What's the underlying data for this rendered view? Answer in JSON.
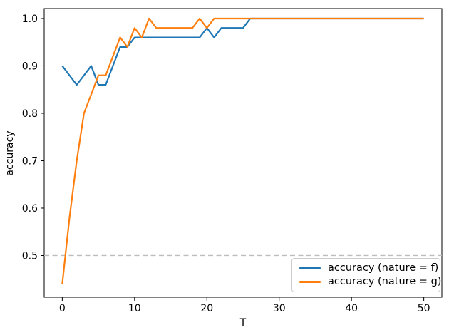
{
  "figure": {
    "background": "#ffffff"
  },
  "chart_data": {
    "type": "line",
    "title": "",
    "xlabel": "T",
    "ylabel": "accuracy",
    "x_ticks": [
      0,
      10,
      20,
      30,
      40,
      50
    ],
    "y_ticks": [
      0.5,
      0.6,
      0.7,
      0.8,
      0.9,
      1.0
    ],
    "xlim": [
      -2.5,
      52.5
    ],
    "ylim": [
      0.412,
      1.021
    ],
    "grid": false,
    "legend_position": "lower right",
    "reference_line": {
      "y": 0.5,
      "style": "dashed",
      "color": "#bdbdbd"
    },
    "x": [
      0,
      1,
      2,
      3,
      4,
      5,
      6,
      7,
      8,
      9,
      10,
      11,
      12,
      13,
      14,
      15,
      16,
      17,
      18,
      19,
      20,
      21,
      22,
      23,
      24,
      25,
      26,
      27,
      28,
      29,
      30,
      31,
      32,
      33,
      34,
      35,
      36,
      37,
      38,
      39,
      40,
      41,
      42,
      43,
      44,
      45,
      46,
      47,
      48,
      49,
      50
    ],
    "series": [
      {
        "name": "accuracy (nature = f)",
        "color": "#1f77b4",
        "values": [
          0.9,
          0.88,
          0.86,
          0.88,
          0.9,
          0.86,
          0.86,
          0.9,
          0.94,
          0.94,
          0.96,
          0.96,
          0.96,
          0.96,
          0.96,
          0.96,
          0.96,
          0.96,
          0.96,
          0.96,
          0.98,
          0.96,
          0.98,
          0.98,
          0.98,
          0.98,
          1.0,
          1.0,
          1.0,
          1.0,
          1.0,
          1.0,
          1.0,
          1.0,
          1.0,
          1.0,
          1.0,
          1.0,
          1.0,
          1.0,
          1.0,
          1.0,
          1.0,
          1.0,
          1.0,
          1.0,
          1.0,
          1.0,
          1.0,
          1.0,
          1.0
        ]
      },
      {
        "name": "accuracy (nature = g)",
        "color": "#ff7f0e",
        "values": [
          0.44,
          0.58,
          0.7,
          0.8,
          0.84,
          0.88,
          0.88,
          0.92,
          0.96,
          0.94,
          0.98,
          0.96,
          1.0,
          0.98,
          0.98,
          0.98,
          0.98,
          0.98,
          0.98,
          1.0,
          0.98,
          1.0,
          1.0,
          1.0,
          1.0,
          1.0,
          1.0,
          1.0,
          1.0,
          1.0,
          1.0,
          1.0,
          1.0,
          1.0,
          1.0,
          1.0,
          1.0,
          1.0,
          1.0,
          1.0,
          1.0,
          1.0,
          1.0,
          1.0,
          1.0,
          1.0,
          1.0,
          1.0,
          1.0,
          1.0,
          1.0
        ]
      }
    ]
  }
}
